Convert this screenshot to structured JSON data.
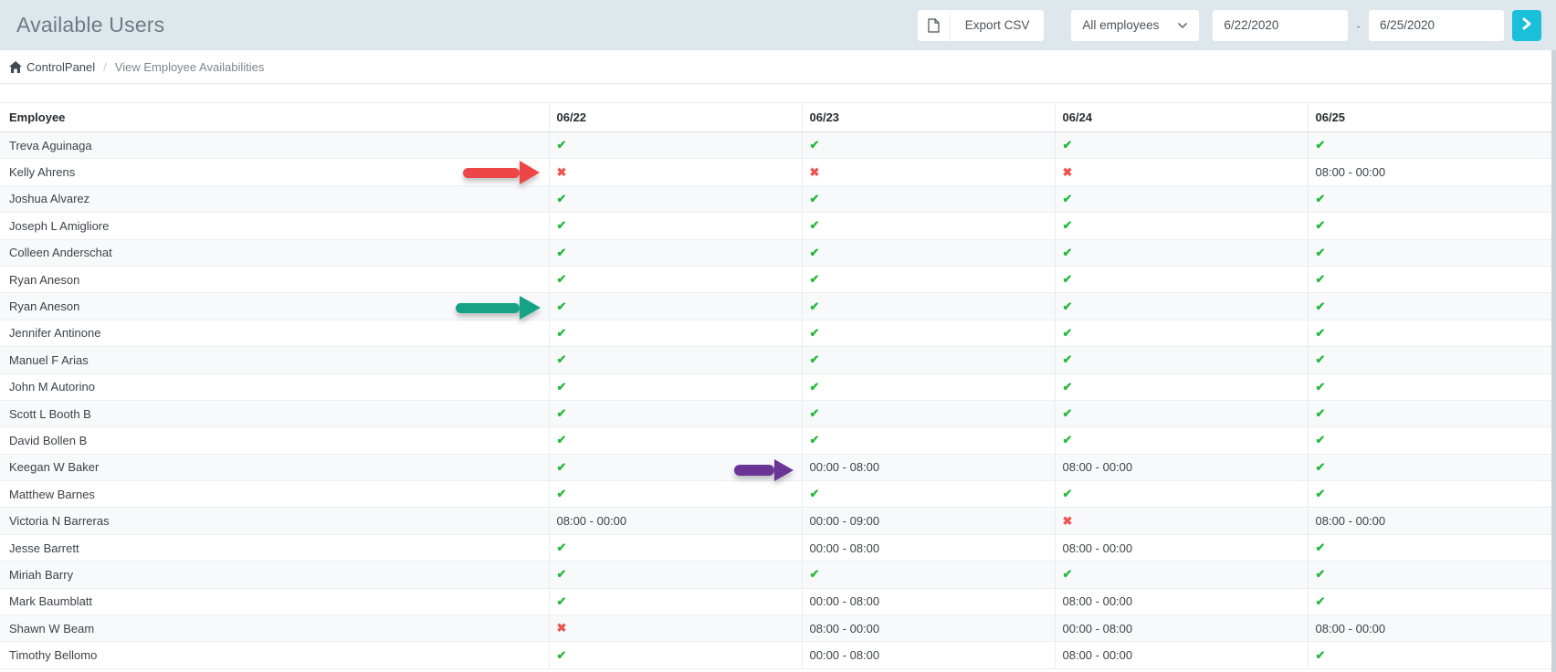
{
  "header": {
    "title": "Available Users",
    "export_button": {
      "label": "Export CSV",
      "icon": "file-icon"
    },
    "employee_filter": {
      "value": "All employees"
    },
    "date_range": {
      "start": "6/22/2020",
      "separator": "-",
      "end": "6/25/2020"
    },
    "go_button_icon": "chevron-right-icon"
  },
  "breadcrumb": {
    "home_icon": "home-icon",
    "root": "ControlPanel",
    "separator": "/",
    "current": "View Employee Availabilities"
  },
  "table": {
    "columns": [
      "Employee",
      "06/22",
      "06/23",
      "06/24",
      "06/25"
    ],
    "glyphs": {
      "check": "✔",
      "cross": "✖"
    },
    "rows": [
      {
        "name": "Treva Aguinaga",
        "cells": [
          "check",
          "check",
          "check",
          "check"
        ]
      },
      {
        "name": "Kelly Ahrens",
        "cells": [
          "cross",
          "cross",
          "cross",
          "08:00 - 00:00"
        ]
      },
      {
        "name": "Joshua Alvarez",
        "cells": [
          "check",
          "check",
          "check",
          "check"
        ]
      },
      {
        "name": "Joseph L Amigliore",
        "cells": [
          "check",
          "check",
          "check",
          "check"
        ]
      },
      {
        "name": "Colleen Anderschat",
        "cells": [
          "check",
          "check",
          "check",
          "check"
        ]
      },
      {
        "name": "Ryan Aneson",
        "cells": [
          "check",
          "check",
          "check",
          "check"
        ]
      },
      {
        "name": "Ryan Aneson",
        "cells": [
          "check",
          "check",
          "check",
          "check"
        ]
      },
      {
        "name": "Jennifer Antinone",
        "cells": [
          "check",
          "check",
          "check",
          "check"
        ]
      },
      {
        "name": "Manuel F Arias",
        "cells": [
          "check",
          "check",
          "check",
          "check"
        ]
      },
      {
        "name": "John M Autorino",
        "cells": [
          "check",
          "check",
          "check",
          "check"
        ]
      },
      {
        "name": "Scott L Booth B",
        "cells": [
          "check",
          "check",
          "check",
          "check"
        ]
      },
      {
        "name": "David Bollen B",
        "cells": [
          "check",
          "check",
          "check",
          "check"
        ]
      },
      {
        "name": "Keegan W Baker",
        "cells": [
          "check",
          "00:00 - 08:00",
          "08:00 - 00:00",
          "check"
        ]
      },
      {
        "name": "Matthew Barnes",
        "cells": [
          "check",
          "check",
          "check",
          "check"
        ]
      },
      {
        "name": "Victoria N Barreras",
        "cells": [
          "08:00 - 00:00",
          "00:00 - 09:00",
          "cross",
          "08:00 - 00:00"
        ]
      },
      {
        "name": "Jesse Barrett",
        "cells": [
          "check",
          "00:00 - 08:00",
          "08:00 - 00:00",
          "check"
        ]
      },
      {
        "name": "Miriah Barry",
        "cells": [
          "check",
          "check",
          "check",
          "check"
        ]
      },
      {
        "name": "Mark Baumblatt",
        "cells": [
          "check",
          "00:00 - 08:00",
          "08:00 - 00:00",
          "check"
        ]
      },
      {
        "name": "Shawn W Beam",
        "cells": [
          "cross",
          "08:00 - 00:00",
          "00:00 - 08:00",
          "08:00 - 00:00"
        ]
      },
      {
        "name": "Timothy Bellomo",
        "cells": [
          "check",
          "00:00 - 08:00",
          "08:00 - 00:00",
          "check"
        ]
      }
    ]
  },
  "annotations": [
    {
      "name": "red-arrow",
      "color": "#ee4646"
    },
    {
      "name": "green-arrow",
      "color": "#16a385"
    },
    {
      "name": "purple-arrow",
      "color": "#6a3597"
    }
  ],
  "colors": {
    "topbar_bg": "#dee7eb",
    "accent_teal": "#1abfd9",
    "check_green": "#26b93f",
    "cross_red": "#ef5350",
    "row_stripe": "#f8f9fb"
  }
}
